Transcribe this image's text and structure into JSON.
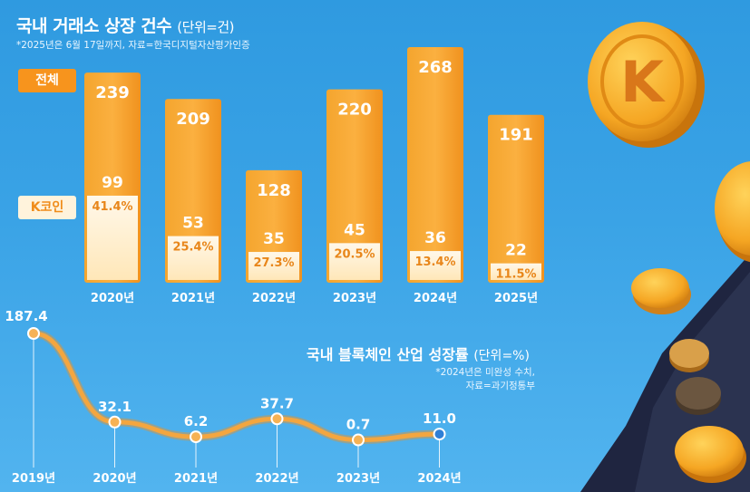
{
  "title": "국내 거래소 상장 건수",
  "title_unit": "(단위=건)",
  "note": "*2025년은 6월 17일까지, 자료=한국디지털자산평가인증",
  "legend": {
    "total": "전체",
    "kcoin": "K코인"
  },
  "colors": {
    "total": "#f7941d",
    "kcoin": "#fff3dc",
    "line": "#f0a23b"
  },
  "line_title": "국내 블록체인 산업 성장률",
  "line_title_unit": "(단위=%)",
  "line_note": [
    "*2024년은 미완성 수치,",
    "자료=과기정통부"
  ],
  "chart_data": [
    {
      "type": "bar",
      "title": "국내 거래소 상장 건수",
      "categories": [
        "2020년",
        "2021년",
        "2022년",
        "2023년",
        "2024년",
        "2025년"
      ],
      "series": [
        {
          "name": "전체",
          "values": [
            239,
            209,
            128,
            220,
            268,
            191
          ]
        },
        {
          "name": "K코인",
          "values": [
            99,
            53,
            35,
            45,
            36,
            22
          ]
        }
      ],
      "share_labels": [
        "41.4%",
        "25.4%",
        "27.3%",
        "20.5%",
        "13.4%",
        "11.5%"
      ],
      "ylim": [
        0,
        268
      ]
    },
    {
      "type": "line",
      "title": "국내 블록체인 산업 성장률",
      "categories": [
        "2019년",
        "2020년",
        "2021년",
        "2022년",
        "2023년",
        "2024년"
      ],
      "values": [
        187.4,
        32.1,
        6.2,
        37.7,
        0.7,
        11.0
      ],
      "labels": [
        "187.4",
        "32.1",
        "6.2",
        "37.7",
        "0.7",
        "11.0"
      ],
      "ylim": [
        0,
        187.4
      ]
    }
  ]
}
